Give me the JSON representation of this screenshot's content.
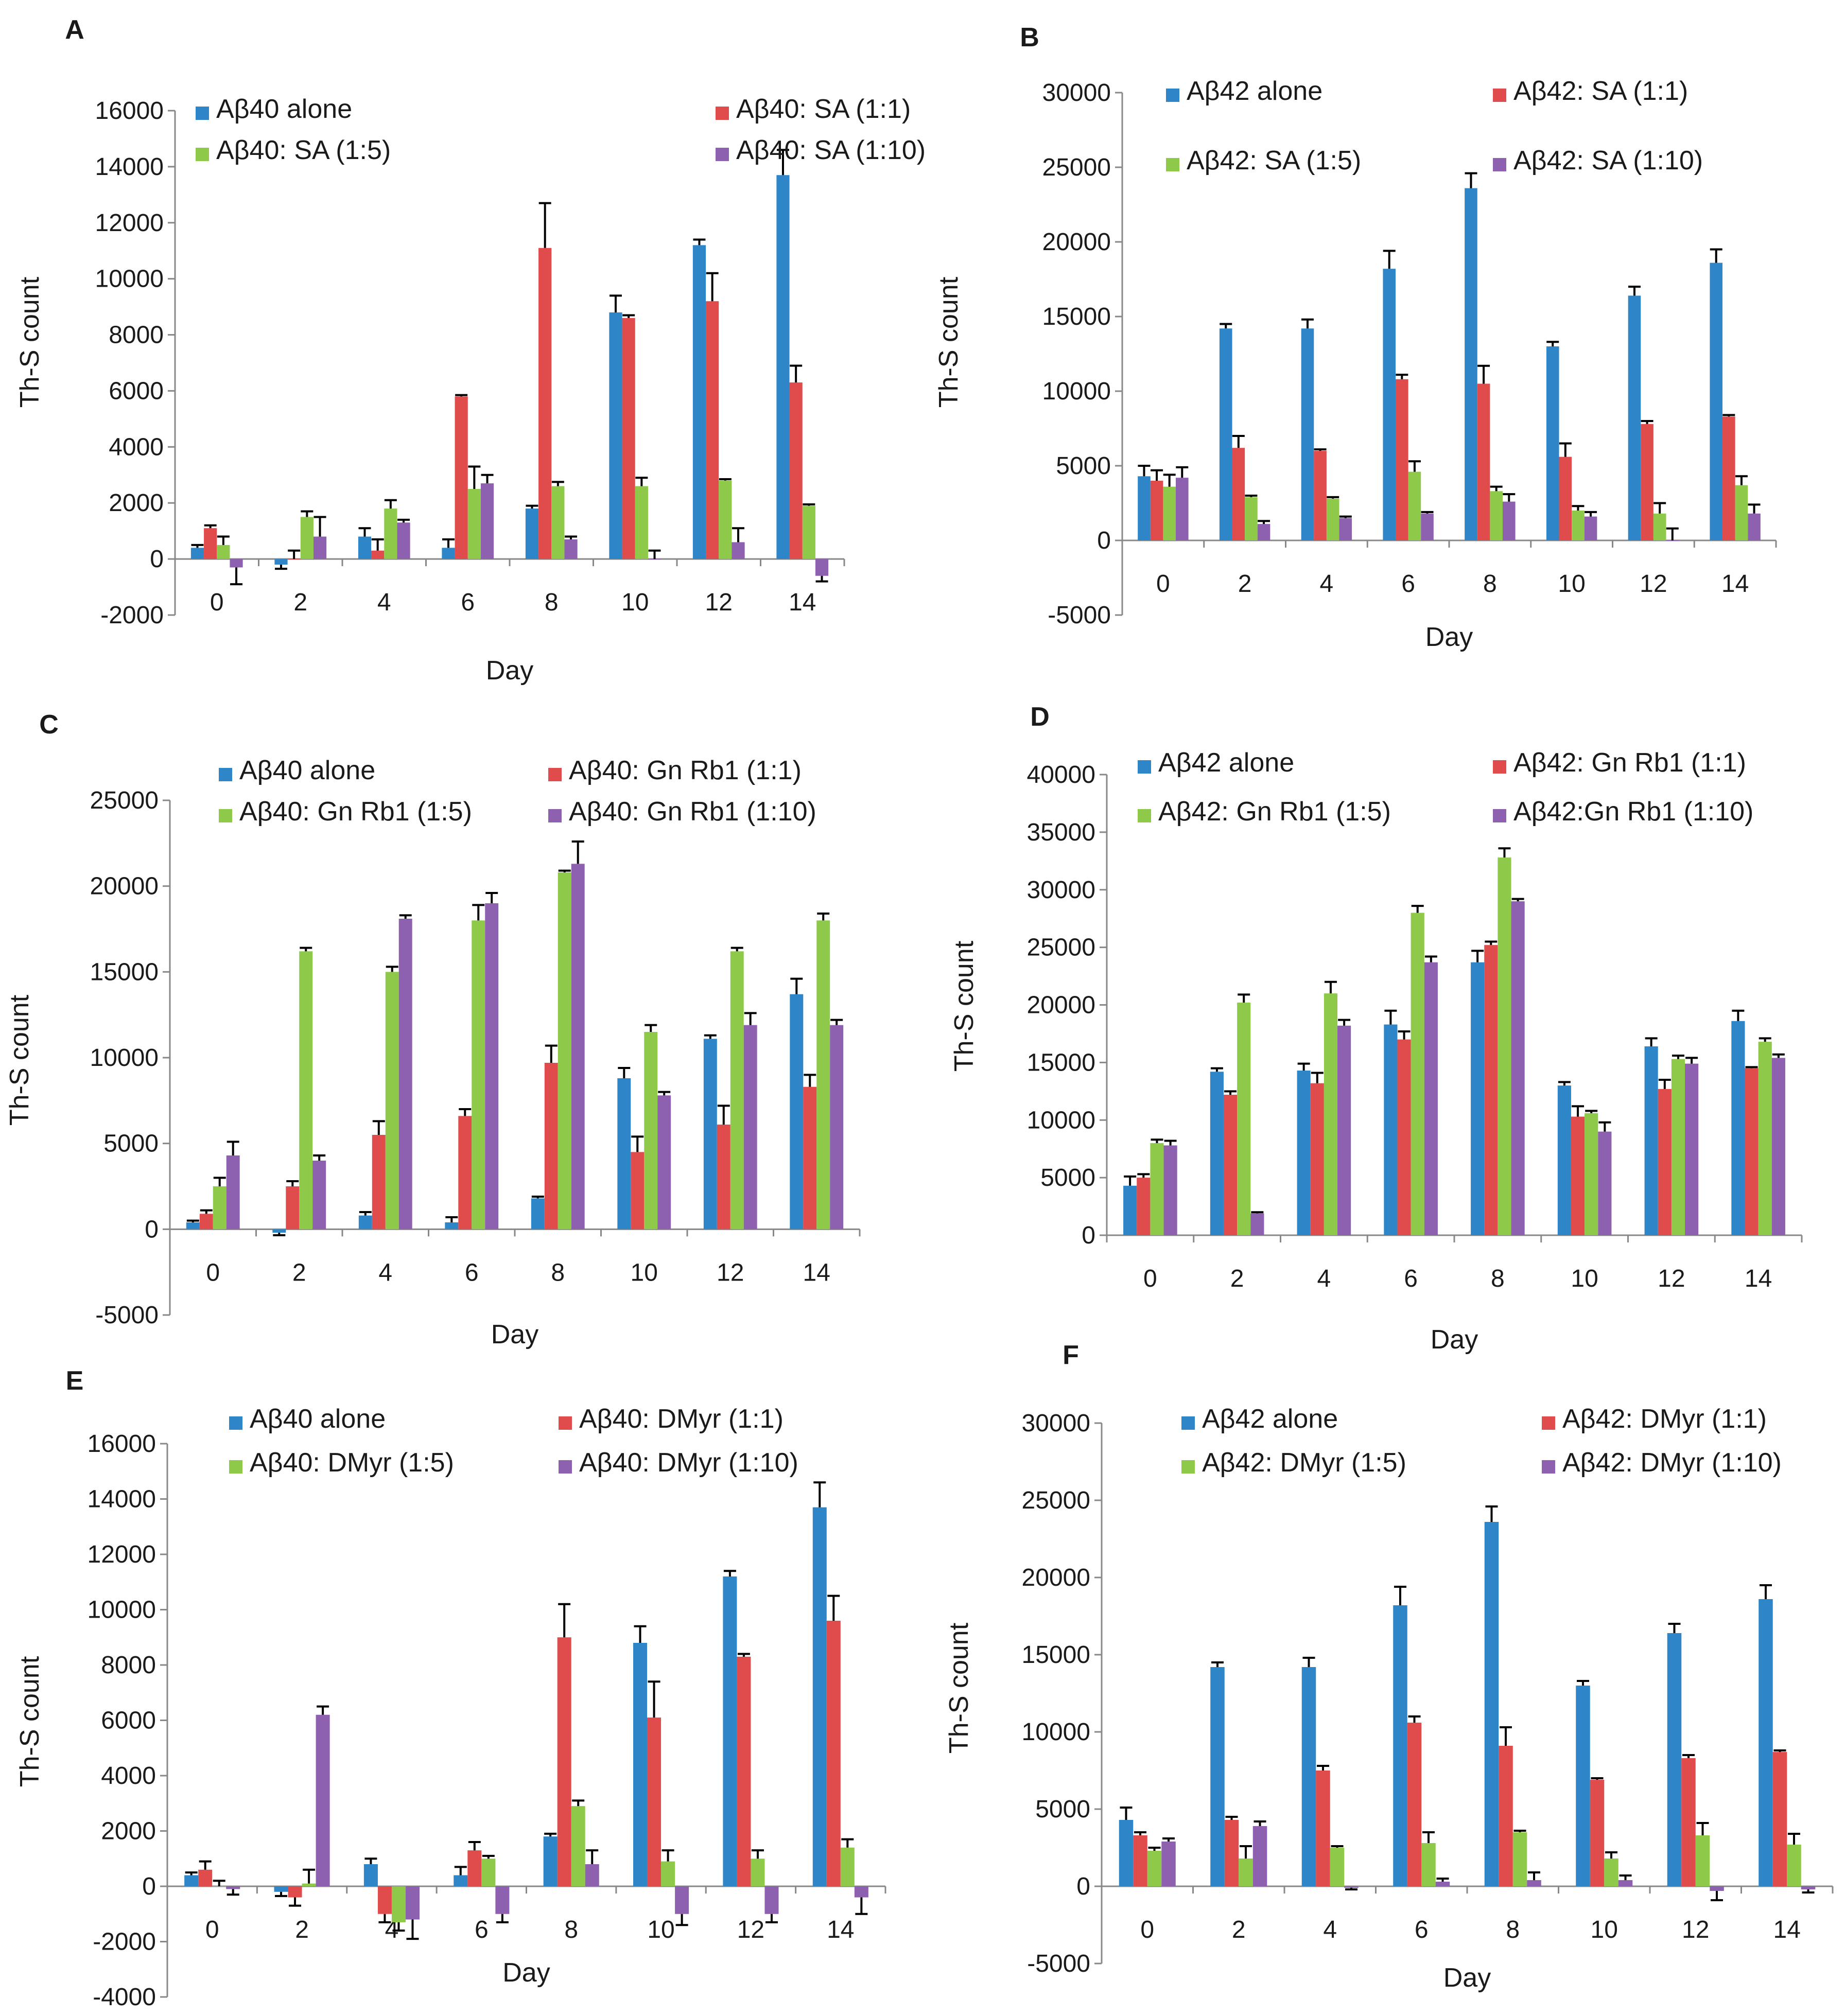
{
  "figure": {
    "panel_count": 6
  },
  "chart_data": [
    {
      "panel": "A",
      "type": "bar",
      "title": "",
      "xlabel": "Day",
      "ylabel": "Th-S count",
      "ylim": [
        -2000,
        16000
      ],
      "yticks": [
        -2000,
        0,
        2000,
        4000,
        6000,
        8000,
        10000,
        12000,
        14000,
        16000
      ],
      "categories": [
        "0",
        "2",
        "4",
        "6",
        "8",
        "10",
        "12",
        "14"
      ],
      "series": [
        {
          "name": "Aβ40 alone",
          "color": "#2e86c9",
          "values": [
            400,
            -200,
            800,
            400,
            1800,
            8800,
            11200,
            13700
          ],
          "errors": [
            100,
            150,
            300,
            300,
            100,
            600,
            200,
            900
          ]
        },
        {
          "name": "Aβ40: SA (1:1)",
          "color": "#e04b4b",
          "values": [
            1100,
            0,
            300,
            5800,
            11100,
            8600,
            9200,
            6300
          ],
          "errors": [
            100,
            300,
            400,
            50,
            1600,
            100,
            1000,
            600
          ]
        },
        {
          "name": "Aβ40: SA (1:5)",
          "color": "#8ec94a",
          "values": [
            500,
            1500,
            1800,
            2500,
            2600,
            2600,
            2800,
            1900
          ],
          "errors": [
            300,
            200,
            300,
            800,
            150,
            300,
            50,
            50
          ]
        },
        {
          "name": "Aβ40: SA (1:10)",
          "color": "#8e60b0",
          "values": [
            -300,
            800,
            1300,
            2700,
            700,
            0,
            600,
            -600
          ],
          "errors": [
            600,
            700,
            100,
            300,
            100,
            300,
            500,
            200
          ]
        }
      ]
    },
    {
      "panel": "B",
      "type": "bar",
      "title": "",
      "xlabel": "Day",
      "ylabel": "Th-S count",
      "ylim": [
        -5000,
        30000
      ],
      "yticks": [
        -5000,
        0,
        5000,
        10000,
        15000,
        20000,
        25000,
        30000
      ],
      "categories": [
        "0",
        "2",
        "4",
        "6",
        "8",
        "10",
        "12",
        "14"
      ],
      "series": [
        {
          "name": "Aβ42 alone",
          "color": "#2e86c9",
          "values": [
            4300,
            14200,
            14200,
            18200,
            23600,
            13000,
            16400,
            18600
          ],
          "errors": [
            700,
            300,
            600,
            1200,
            1000,
            300,
            600,
            900
          ]
        },
        {
          "name": "Aβ42: SA (1:1)",
          "color": "#e04b4b",
          "values": [
            4000,
            6200,
            6000,
            10800,
            10500,
            5600,
            7800,
            8300
          ],
          "errors": [
            700,
            800,
            100,
            300,
            1200,
            900,
            200,
            100
          ]
        },
        {
          "name": "Aβ42: SA (1:5)",
          "color": "#8ec94a",
          "values": [
            3600,
            2900,
            2800,
            4600,
            3300,
            2000,
            1800,
            3700
          ],
          "errors": [
            800,
            100,
            100,
            700,
            300,
            300,
            700,
            600
          ]
        },
        {
          "name": "Aβ42: SA (1:10)",
          "color": "#8e60b0",
          "values": [
            4200,
            1100,
            1500,
            1800,
            2600,
            1600,
            0,
            1800
          ],
          "errors": [
            700,
            200,
            100,
            100,
            500,
            300,
            800,
            600
          ]
        }
      ]
    },
    {
      "panel": "C",
      "type": "bar",
      "title": "",
      "xlabel": "Day",
      "ylabel": "Th-S count",
      "ylim": [
        -5000,
        25000
      ],
      "yticks": [
        -5000,
        0,
        5000,
        10000,
        15000,
        20000,
        25000
      ],
      "categories": [
        "0",
        "2",
        "4",
        "6",
        "8",
        "10",
        "12",
        "14"
      ],
      "series": [
        {
          "name": "Aβ40 alone",
          "color": "#2e86c9",
          "values": [
            400,
            -200,
            800,
            400,
            1800,
            8800,
            11100,
            13700
          ],
          "errors": [
            100,
            150,
            200,
            300,
            100,
            600,
            200,
            900
          ]
        },
        {
          "name": "Aβ40: Gn Rb1 (1:1)",
          "color": "#e04b4b",
          "values": [
            900,
            2500,
            5500,
            6600,
            9700,
            4500,
            6100,
            8300
          ],
          "errors": [
            200,
            300,
            800,
            400,
            1000,
            900,
            1100,
            700
          ]
        },
        {
          "name": "Aβ40: Gn Rb1 (1:5)",
          "color": "#8ec94a",
          "values": [
            2500,
            16200,
            15000,
            18000,
            20800,
            11500,
            16200,
            18000
          ],
          "errors": [
            500,
            200,
            300,
            900,
            100,
            400,
            200,
            400
          ]
        },
        {
          "name": "Aβ40: Gn Rb1 (1:10)",
          "color": "#8e60b0",
          "values": [
            4300,
            4000,
            18100,
            19000,
            21300,
            7800,
            11900,
            11900
          ],
          "errors": [
            800,
            300,
            200,
            600,
            1300,
            200,
            700,
            300
          ]
        }
      ]
    },
    {
      "panel": "D",
      "type": "bar",
      "title": "",
      "xlabel": "Day",
      "ylabel": "Th-S count",
      "ylim": [
        0,
        40000
      ],
      "yticks": [
        0,
        5000,
        10000,
        15000,
        20000,
        25000,
        30000,
        35000,
        40000
      ],
      "categories": [
        "0",
        "2",
        "4",
        "6",
        "8",
        "10",
        "12",
        "14"
      ],
      "series": [
        {
          "name": "Aβ42 alone",
          "color": "#2e86c9",
          "values": [
            4300,
            14200,
            14300,
            18300,
            23700,
            13000,
            16400,
            18600
          ],
          "errors": [
            800,
            300,
            600,
            1200,
            1000,
            300,
            700,
            900
          ]
        },
        {
          "name": "Aβ42: Gn Rb1 (1:1)",
          "color": "#e04b4b",
          "values": [
            5000,
            12200,
            13200,
            17000,
            25200,
            10300,
            12700,
            14500
          ],
          "errors": [
            300,
            300,
            900,
            700,
            300,
            900,
            800,
            100
          ]
        },
        {
          "name": "Aβ42: Gn Rb1 (1:5)",
          "color": "#8ec94a",
          "values": [
            8000,
            20200,
            21000,
            28000,
            32800,
            10600,
            15300,
            16800
          ],
          "errors": [
            300,
            700,
            1000,
            600,
            800,
            200,
            300,
            300
          ]
        },
        {
          "name": "Aβ42:Gn Rb1 (1:10)",
          "color": "#8e60b0",
          "values": [
            7800,
            1900,
            18200,
            23700,
            29000,
            9000,
            14900,
            15400
          ],
          "errors": [
            400,
            100,
            500,
            500,
            200,
            800,
            500,
            300
          ]
        }
      ]
    },
    {
      "panel": "E",
      "type": "bar",
      "title": "",
      "xlabel": "Day",
      "ylabel": "Th-S count",
      "ylim": [
        -4000,
        16000
      ],
      "yticks": [
        -4000,
        -2000,
        0,
        2000,
        4000,
        6000,
        8000,
        10000,
        12000,
        14000,
        16000
      ],
      "categories": [
        "0",
        "2",
        "4",
        "6",
        "8",
        "10",
        "12",
        "14"
      ],
      "series": [
        {
          "name": "Aβ40 alone",
          "color": "#2e86c9",
          "values": [
            400,
            -200,
            800,
            400,
            1800,
            8800,
            11200,
            13700
          ],
          "errors": [
            100,
            150,
            200,
            300,
            100,
            600,
            200,
            900
          ]
        },
        {
          "name": "Aβ40: DMyr (1:1)",
          "color": "#e04b4b",
          "values": [
            600,
            -400,
            -1000,
            1300,
            9000,
            6100,
            8300,
            9600
          ],
          "errors": [
            300,
            300,
            300,
            300,
            1200,
            1300,
            100,
            900
          ]
        },
        {
          "name": "Aβ40: DMyr (1:5)",
          "color": "#8ec94a",
          "values": [
            0,
            100,
            -1300,
            1000,
            2900,
            900,
            1000,
            1400
          ],
          "errors": [
            200,
            500,
            300,
            100,
            200,
            400,
            300,
            300
          ]
        },
        {
          "name": "Aβ40: DMyr (1:10)",
          "color": "#8e60b0",
          "values": [
            -100,
            6200,
            -1200,
            -1000,
            800,
            -1000,
            -1000,
            -400
          ],
          "errors": [
            200,
            300,
            700,
            300,
            500,
            400,
            300,
            600
          ]
        }
      ]
    },
    {
      "panel": "F",
      "type": "bar",
      "title": "",
      "xlabel": "Day",
      "ylabel": "Th-S count",
      "ylim": [
        -5000,
        30000
      ],
      "yticks": [
        -5000,
        0,
        5000,
        10000,
        15000,
        20000,
        25000,
        30000
      ],
      "categories": [
        "0",
        "2",
        "4",
        "6",
        "8",
        "10",
        "12",
        "14"
      ],
      "series": [
        {
          "name": "Aβ42 alone",
          "color": "#2e86c9",
          "values": [
            4300,
            14200,
            14200,
            18200,
            23600,
            13000,
            16400,
            18600
          ],
          "errors": [
            800,
            300,
            600,
            1200,
            1000,
            300,
            600,
            900
          ]
        },
        {
          "name": "Aβ42: DMyr (1:1)",
          "color": "#e04b4b",
          "values": [
            3300,
            4300,
            7500,
            10600,
            9100,
            6900,
            8300,
            8700
          ],
          "errors": [
            200,
            200,
            300,
            400,
            1200,
            100,
            200,
            100
          ]
        },
        {
          "name": "Aβ42: DMyr (1:5)",
          "color": "#8ec94a",
          "values": [
            2300,
            1800,
            2500,
            2800,
            3500,
            1800,
            3300,
            2700
          ],
          "errors": [
            200,
            800,
            100,
            700,
            100,
            400,
            800,
            700
          ]
        },
        {
          "name": "Aβ42: DMyr (1:10)",
          "color": "#8e60b0",
          "values": [
            2900,
            3900,
            -100,
            300,
            400,
            400,
            -300,
            -200
          ],
          "errors": [
            200,
            300,
            100,
            200,
            500,
            300,
            600,
            200
          ]
        }
      ]
    }
  ]
}
